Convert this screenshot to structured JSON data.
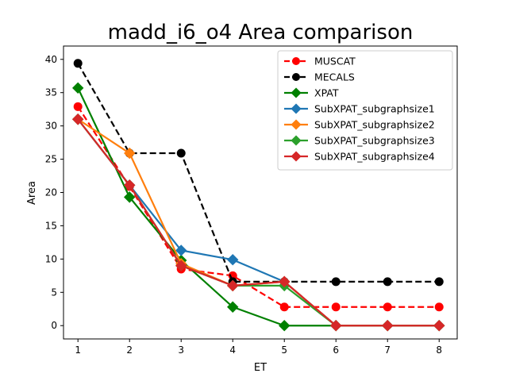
{
  "chart_data": {
    "type": "line",
    "title": "madd_i6_o4 Area comparison",
    "xlabel": "ET",
    "ylabel": "Area",
    "x": [
      1,
      2,
      3,
      4,
      5,
      6,
      7,
      8
    ],
    "xlim": [
      0.72,
      8.35
    ],
    "ylim": [
      -2,
      42
    ],
    "yticks": [
      0,
      5,
      10,
      15,
      20,
      25,
      30,
      35,
      40
    ],
    "grid": false,
    "legend_position": "top-right",
    "series": [
      {
        "name": "MUSCAT",
        "color": "#ff0000",
        "dash": "dashed",
        "marker": "circle",
        "values": [
          32.9,
          20.9,
          8.5,
          7.5,
          2.8,
          2.8,
          2.8,
          2.8
        ]
      },
      {
        "name": "MECALS",
        "color": "#000000",
        "dash": "dashed",
        "marker": "circle",
        "values": [
          39.4,
          25.9,
          25.9,
          6.6,
          6.6,
          6.6,
          6.6,
          6.6
        ]
      },
      {
        "name": "XPAT",
        "color": "#008000",
        "dash": "solid",
        "marker": "diamond",
        "values": [
          35.7,
          19.3,
          9.8,
          2.8,
          0,
          0,
          0,
          0
        ]
      },
      {
        "name": "SubXPAT_subgraphsize1",
        "color": "#1f77b4",
        "dash": "solid",
        "marker": "diamond",
        "values": [
          31.0,
          21.1,
          11.3,
          9.9,
          6.6,
          0,
          0,
          0
        ]
      },
      {
        "name": "SubXPAT_subgraphsize2",
        "color": "#ff7f0e",
        "dash": "solid",
        "marker": "diamond",
        "values": [
          31.0,
          25.9,
          9.3,
          6.0,
          6.6,
          0,
          0,
          0
        ]
      },
      {
        "name": "SubXPAT_subgraphsize3",
        "color": "#2ca02c",
        "dash": "solid",
        "marker": "diamond",
        "values": [
          31.0,
          21.1,
          9.0,
          6.0,
          6.0,
          0,
          0,
          0
        ]
      },
      {
        "name": "SubXPAT_subgraphsize4",
        "color": "#d62728",
        "dash": "solid",
        "marker": "diamond",
        "values": [
          31.0,
          21.1,
          9.0,
          6.0,
          6.6,
          0,
          0,
          0
        ]
      }
    ]
  }
}
